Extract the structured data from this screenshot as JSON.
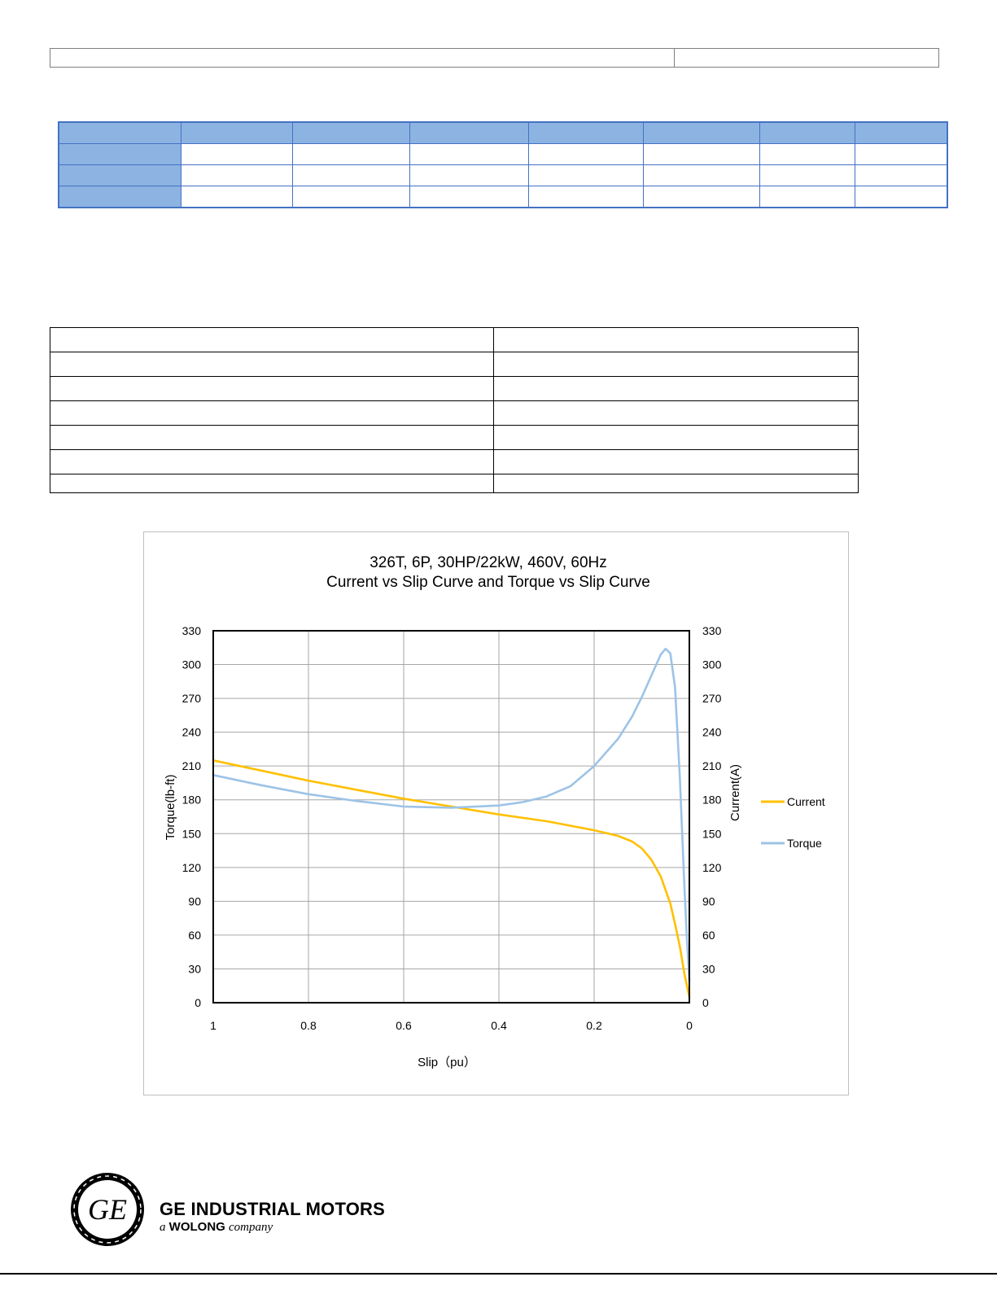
{
  "chart_data": {
    "type": "line",
    "title": "326T, 6P, 30HP/22kW, 460V, 60Hz",
    "subtitle": "Current vs Slip Curve and Torque vs Slip Curve",
    "xlabel": "Slip（pu）",
    "ylabel_left": "Torque(lb-ft)",
    "ylabel_right": "Current(A)",
    "x_ticks": [
      "1",
      "0.8",
      "0.6",
      "0.4",
      "0.2",
      "0"
    ],
    "y_ticks": [
      "0",
      "30",
      "60",
      "90",
      "120",
      "150",
      "180",
      "210",
      "240",
      "270",
      "300",
      "330"
    ],
    "xlim": [
      1,
      0
    ],
    "ylim": [
      0,
      330
    ],
    "grid": true,
    "legend_position": "right",
    "series": [
      {
        "name": "Current",
        "color": "#ffc000",
        "x": [
          1.0,
          0.9,
          0.8,
          0.7,
          0.6,
          0.5,
          0.4,
          0.3,
          0.2,
          0.15,
          0.12,
          0.1,
          0.08,
          0.06,
          0.04,
          0.03,
          0.02,
          0.01,
          0.0
        ],
        "y": [
          215,
          206,
          197,
          189,
          181,
          174,
          167,
          161,
          153,
          148,
          143,
          137,
          127,
          112,
          88,
          70,
          50,
          25,
          5
        ]
      },
      {
        "name": "Torque",
        "color": "#9dc3e6",
        "x": [
          1.0,
          0.9,
          0.8,
          0.7,
          0.6,
          0.5,
          0.4,
          0.35,
          0.3,
          0.25,
          0.2,
          0.15,
          0.12,
          0.1,
          0.08,
          0.06,
          0.05,
          0.04,
          0.03,
          0.02,
          0.01,
          0.005,
          0.0
        ],
        "y": [
          202,
          193,
          185,
          179,
          174,
          173,
          175,
          178,
          183,
          192,
          210,
          234,
          254,
          271,
          290,
          309,
          314,
          310,
          280,
          200,
          100,
          55,
          20
        ]
      }
    ]
  },
  "footer": {
    "brand_line1": "GE INDUSTRIAL MOTORS",
    "brand_line2_a": "a",
    "brand_line2_name": "WOLONG",
    "brand_line2_company": "company",
    "logo_text": "GE"
  }
}
